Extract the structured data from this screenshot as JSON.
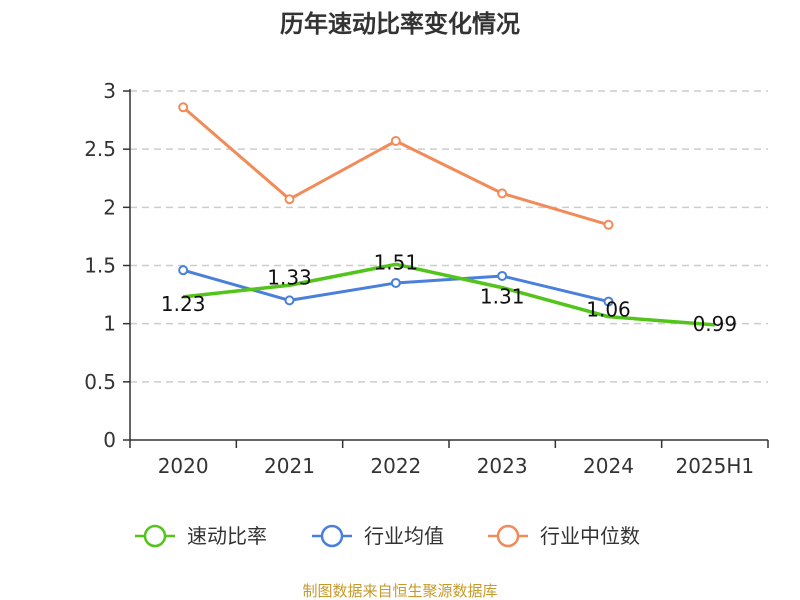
{
  "chart_data": {
    "type": "line",
    "title": "历年速动比率变化情况",
    "categories": [
      "2020",
      "2021",
      "2022",
      "2023",
      "2024",
      "2025H1"
    ],
    "ylim": [
      0,
      3
    ],
    "yticks": [
      "0",
      "0.5",
      "1",
      "1.5",
      "2",
      "2.5",
      "3"
    ],
    "grid": true,
    "legend_position": "bottom",
    "series": [
      {
        "name": "速动比率",
        "color": "#52c41a",
        "values": [
          1.23,
          1.33,
          1.51,
          1.31,
          1.06,
          0.99
        ],
        "labels": [
          "1.23",
          "1.33",
          "1.51",
          "1.31",
          "1.06",
          "0.99"
        ]
      },
      {
        "name": "行业均值",
        "color": "#4a7fdb",
        "values": [
          1.46,
          1.2,
          1.35,
          1.41,
          1.19,
          null
        ]
      },
      {
        "name": "行业中位数",
        "color": "#f28b5a",
        "values": [
          2.86,
          2.07,
          2.57,
          2.12,
          1.85,
          null
        ]
      }
    ]
  },
  "source_note": "制图数据来自恒生聚源数据库"
}
